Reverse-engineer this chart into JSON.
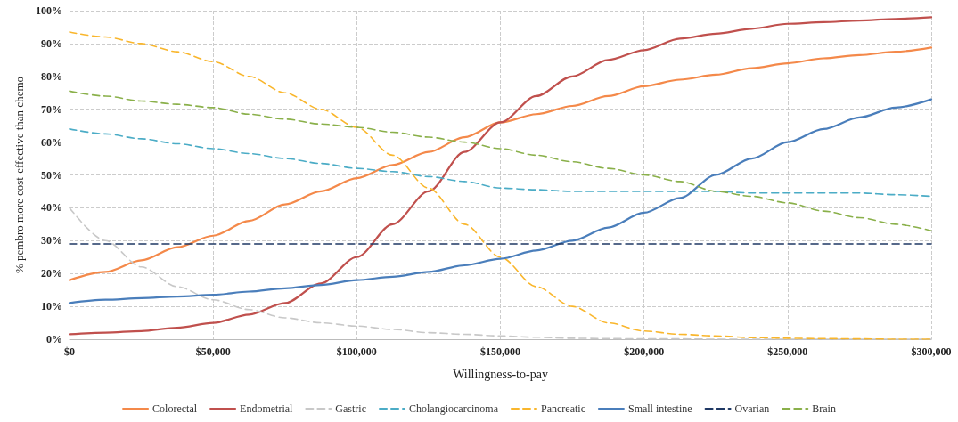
{
  "chart_data": {
    "type": "line",
    "xlabel": "Willingness-to-pay",
    "ylabel": "% pembro more cost-effective than chemo",
    "x": [
      0,
      12500,
      25000,
      37500,
      50000,
      62500,
      75000,
      87500,
      100000,
      112500,
      125000,
      137500,
      150000,
      162500,
      175000,
      187500,
      200000,
      212500,
      225000,
      237500,
      250000,
      262500,
      275000,
      287500,
      300000
    ],
    "series": [
      {
        "name": "Colorectal",
        "color": "#f4894a",
        "line_style": "solid",
        "values": [
          18,
          20.5,
          24,
          28,
          31.5,
          36,
          41,
          45,
          49,
          53,
          57,
          61.5,
          66,
          68.5,
          71,
          74,
          77,
          79,
          80.5,
          82.5,
          84,
          85.5,
          86.5,
          87.5,
          88.8
        ]
      },
      {
        "name": "Endometrial",
        "color": "#c0504d",
        "line_style": "solid",
        "values": [
          1.5,
          2,
          2.5,
          3.5,
          5,
          7.5,
          11,
          17,
          25,
          35,
          45,
          57,
          66,
          74,
          80,
          85,
          88,
          91.5,
          93,
          94.5,
          96,
          96.5,
          97,
          97.5,
          98
        ]
      },
      {
        "name": "Gastric",
        "color": "#c8c8c8",
        "line_style": "dashed",
        "values": [
          40,
          30,
          22,
          16,
          12,
          9,
          6.5,
          5,
          4,
          3,
          2,
          1.5,
          1,
          0.6,
          0.3,
          0.2,
          0.1,
          0.1,
          0,
          0,
          0,
          0,
          0,
          0,
          0
        ]
      },
      {
        "name": "Cholangiocarcinoma",
        "color": "#4bacc6",
        "line_style": "dashed",
        "values": [
          64,
          62.5,
          61,
          59.5,
          58,
          56.5,
          55,
          53.5,
          52,
          51,
          49.5,
          48,
          46,
          45.5,
          45,
          45,
          45,
          45,
          45,
          44.5,
          44.5,
          44.5,
          44.5,
          44,
          43.5
        ]
      },
      {
        "name": "Pancreatic",
        "color": "#f9b62c",
        "line_style": "dashed",
        "values": [
          93.5,
          92,
          90,
          87.5,
          84.5,
          80,
          75,
          70,
          64.5,
          56,
          46,
          35,
          25,
          16,
          10,
          5,
          2.5,
          1.5,
          1,
          0.5,
          0.3,
          0.2,
          0.1,
          0,
          0
        ]
      },
      {
        "name": "Small intestine",
        "color": "#4a7ebb",
        "line_style": "solid",
        "values": [
          11,
          12,
          12.5,
          13,
          13.5,
          14.5,
          15.5,
          16.5,
          18,
          19,
          20.5,
          22.5,
          24.5,
          27,
          30,
          34,
          38.5,
          43,
          50,
          55,
          60,
          64,
          67.5,
          70.5,
          73
        ]
      },
      {
        "name": "Ovarian",
        "color": "#1f3864",
        "line_style": "dashed",
        "x": [
          0,
          300000
        ],
        "values": [
          29,
          29
        ]
      },
      {
        "name": "Brain",
        "color": "#8ab04a",
        "line_style": "dashed",
        "values": [
          75.5,
          74,
          72.5,
          71.5,
          70.5,
          68.5,
          67,
          65.5,
          64.5,
          63,
          61.5,
          60,
          58,
          56,
          54,
          52,
          50,
          48,
          45,
          43.5,
          41.5,
          39,
          37,
          35,
          33
        ]
      }
    ],
    "xlim": [
      0,
      300000
    ],
    "xticks": [
      {
        "value": 0,
        "label": "$0"
      },
      {
        "value": 50000,
        "label": "$50,000"
      },
      {
        "value": 100000,
        "label": "$100,000"
      },
      {
        "value": 150000,
        "label": "$150,000"
      },
      {
        "value": 200000,
        "label": "$200,000"
      },
      {
        "value": 250000,
        "label": "$250,000"
      },
      {
        "value": 300000,
        "label": "$300,000"
      }
    ],
    "ylim": [
      0,
      100
    ],
    "yticks": [
      {
        "value": 0,
        "label": "0%"
      },
      {
        "value": 10,
        "label": "10%"
      },
      {
        "value": 20,
        "label": "20%"
      },
      {
        "value": 30,
        "label": "30%"
      },
      {
        "value": 40,
        "label": "40%"
      },
      {
        "value": 50,
        "label": "50%"
      },
      {
        "value": 60,
        "label": "60%"
      },
      {
        "value": 70,
        "label": "70%"
      },
      {
        "value": 80,
        "label": "80%"
      },
      {
        "value": 90,
        "label": "90%"
      },
      {
        "value": 100,
        "label": "100%"
      }
    ],
    "grid": true,
    "legend": "bottom",
    "marker": "none"
  }
}
